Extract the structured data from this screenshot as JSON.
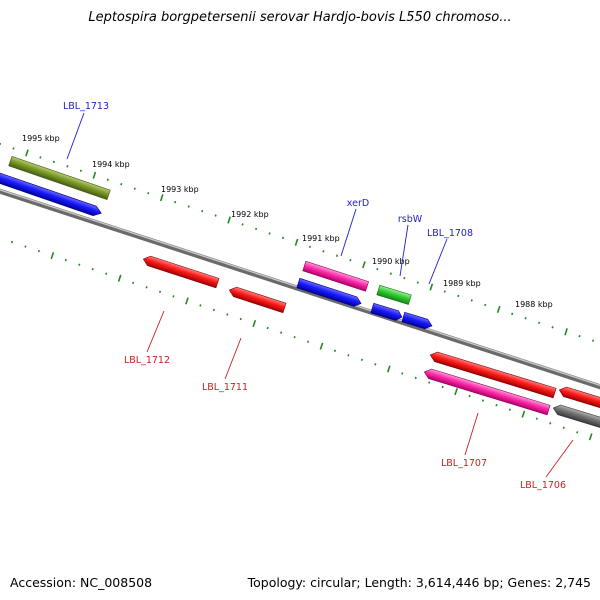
{
  "title": "Leptospira borgpetersenii serovar Hardjo-bovis L550 chromoso...",
  "footer": {
    "accession": "Accession: NC_008508",
    "summary": "Topology: circular; Length: 3,614,446 bp; Genes: 2,745"
  },
  "colors": {
    "backbone": "#8a8a8a",
    "ruler": "#1f8a1f",
    "plus_label": "#1f1fc8",
    "minus_label": "#c81f1f",
    "red": "#ff1a1a",
    "blue": "#1a1aff",
    "magenta": "#ff2aa8",
    "olive": "#7a9a2a",
    "green": "#33cc33",
    "gray": "#707070"
  },
  "ruler": {
    "ticks": [
      {
        "label": "1995 kbp",
        "kbp": 1995
      },
      {
        "label": "1994 kbp",
        "kbp": 1994
      },
      {
        "label": "1993 kbp",
        "kbp": 1993
      },
      {
        "label": "1992 kbp",
        "kbp": 1992
      },
      {
        "label": "1991 kbp",
        "kbp": 1991
      },
      {
        "label": "1990 kbp",
        "kbp": 1990
      },
      {
        "label": "1989 kbp",
        "kbp": 1989
      },
      {
        "label": "1988 kbp",
        "kbp": 1988
      }
    ]
  },
  "genes": [
    {
      "id": "LBL_1713",
      "label": "LBL_1713",
      "strand": "+",
      "color": "olive"
    },
    {
      "id": "LBL_1713_blue",
      "label": "",
      "strand": "+",
      "color": "blue"
    },
    {
      "id": "LBL_1712",
      "label": "LBL_1712",
      "strand": "-",
      "color": "red"
    },
    {
      "id": "LBL_1711",
      "label": "LBL_1711",
      "strand": "-",
      "color": "red"
    },
    {
      "id": "xerD",
      "label": "xerD",
      "strand": "+",
      "color": "magenta"
    },
    {
      "id": "xerD_blue",
      "label": "",
      "strand": "+",
      "color": "blue"
    },
    {
      "id": "rsbW",
      "label": "rsbW",
      "strand": "+",
      "color": "green"
    },
    {
      "id": "rsbW_blue",
      "label": "",
      "strand": "+",
      "color": "blue"
    },
    {
      "id": "LBL_1708",
      "label": "LBL_1708",
      "strand": "+",
      "color": "blue"
    },
    {
      "id": "LBL_1707",
      "label": "LBL_1707",
      "strand": "-",
      "color": "magenta"
    },
    {
      "id": "LBL_1707_red",
      "label": "",
      "strand": "-",
      "color": "red"
    },
    {
      "id": "LBL_1706",
      "label": "LBL_1706",
      "strand": "-",
      "color": "gray"
    },
    {
      "id": "LBL_1706_red",
      "label": "",
      "strand": "-",
      "color": "red"
    }
  ]
}
